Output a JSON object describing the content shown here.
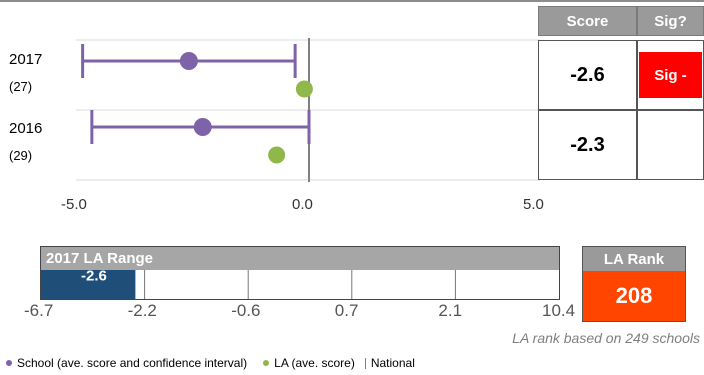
{
  "chart_data": {
    "type": "scatter",
    "xlim": [
      -5.0,
      5.0
    ],
    "x_ticks": [
      "-5.0",
      "0.0",
      "5.0"
    ],
    "national": 0.0,
    "rows": [
      {
        "year": "2017",
        "n": "(27)",
        "school": -2.6,
        "ci": [
          -4.9,
          -0.3
        ],
        "la": -0.1,
        "score": "-2.6",
        "sig": "Sig -"
      },
      {
        "year": "2016",
        "n": "(29)",
        "school": -2.3,
        "ci": [
          -4.7,
          0.0
        ],
        "la": -0.7,
        "score": "-2.3",
        "sig": ""
      }
    ],
    "colors": {
      "school": "#7f63a8",
      "la": "#8fb84a",
      "national": "#808080",
      "sig_negative": "#ff0000"
    }
  },
  "table": {
    "score_header": "Score",
    "sig_header": "Sig?"
  },
  "la_range": {
    "title": "2017 LA Range",
    "value": -2.6,
    "value_label": "-2.6",
    "min": -6.7,
    "max": 10.4,
    "ticks": [
      "-6.7",
      "-2.2",
      "-0.6",
      "0.7",
      "2.1",
      "10.4"
    ],
    "bar_color": "#1f4e79"
  },
  "la_rank": {
    "title": "LA Rank",
    "value": "208",
    "color": "#ff4500",
    "note": "LA rank based on 249 schools"
  },
  "legend": {
    "school": "School (ave. score and confidence interval)",
    "la": "LA (ave. score)",
    "national": "National"
  }
}
